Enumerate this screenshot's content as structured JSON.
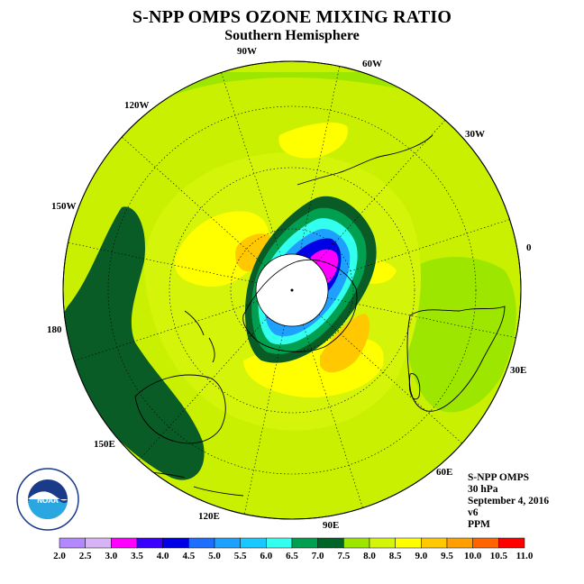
{
  "title": "S-NPP OMPS OZONE MIXING RATIO",
  "subtitle": "Southern Hemisphere",
  "longitude_labels": {
    "w90": "90W",
    "w60": "60W",
    "w30": "30W",
    "zero": "0",
    "e30": "30E",
    "e60": "60E",
    "e90": "90E",
    "e120": "120E",
    "e150": "150E",
    "d180": "180",
    "w150": "150W",
    "w120": "120W"
  },
  "info": {
    "instrument": "S-NPP OMPS",
    "level": "30 hPa",
    "date": "September 4, 2016",
    "version": "v6",
    "units": "PPM"
  },
  "logo": {
    "text": "NOAA",
    "ring_text": "NATIONAL OCEANIC AND ATMOSPHERIC ADMINISTRATION · U.S. DEPARTMENT OF COMMERCE"
  },
  "colorbar": {
    "labels": [
      "2.0",
      "2.5",
      "3.0",
      "3.5",
      "4.0",
      "4.5",
      "5.0",
      "5.5",
      "6.0",
      "6.5",
      "7.0",
      "7.5",
      "8.0",
      "8.5",
      "9.0",
      "9.5",
      "10.0",
      "10.5",
      "11.0"
    ],
    "colors": [
      "#b388ff",
      "#d7b3f5",
      "#ff00ff",
      "#3a00ff",
      "#0000e6",
      "#1e6fff",
      "#1ea0ff",
      "#19c8ff",
      "#33ffee",
      "#00a050",
      "#006428",
      "#9de600",
      "#d4f50a",
      "#ffff00",
      "#ffc800",
      "#ffa000",
      "#ff6400",
      "#ff0000",
      "#8b5a2b"
    ]
  },
  "colors": {
    "background_field": "#c8f000",
    "dark_green": "#0a5c26",
    "green": "#00a050",
    "lime": "#9de600",
    "yellow_green": "#d4f50a",
    "yellow": "#ffff00",
    "orange": "#ffc800",
    "polar_night": "#ffffff"
  }
}
